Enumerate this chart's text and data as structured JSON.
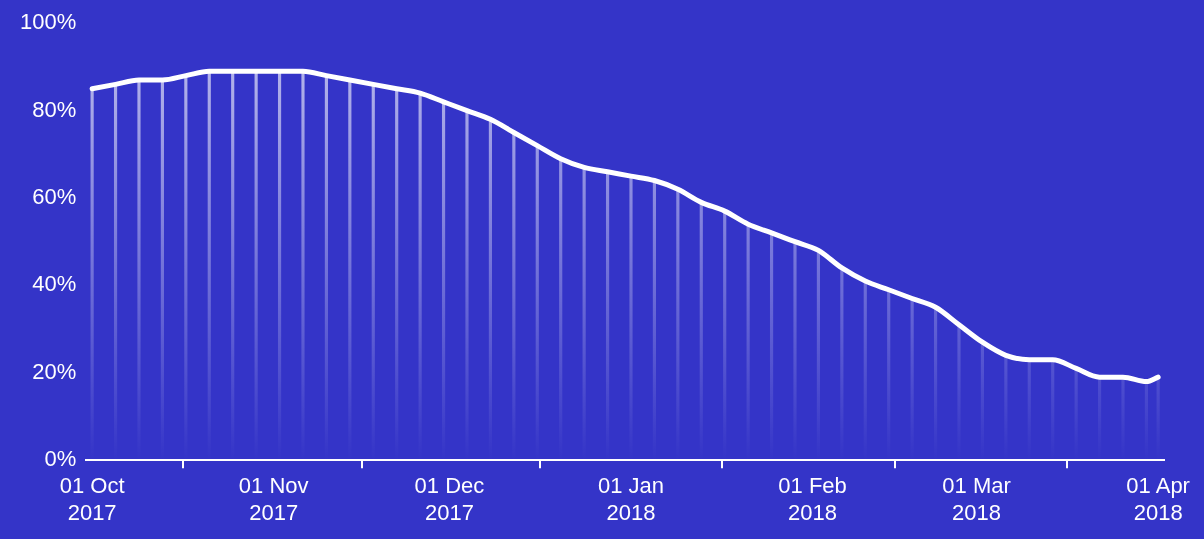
{
  "chart_data": {
    "type": "bar",
    "x": [
      "2017-10-01",
      "2017-10-05",
      "2017-10-09",
      "2017-10-13",
      "2017-10-17",
      "2017-10-21",
      "2017-10-25",
      "2017-10-29",
      "2017-11-02",
      "2017-11-06",
      "2017-11-10",
      "2017-11-14",
      "2017-11-18",
      "2017-11-22",
      "2017-11-26",
      "2017-11-30",
      "2017-12-04",
      "2017-12-08",
      "2017-12-12",
      "2017-12-16",
      "2017-12-20",
      "2017-12-24",
      "2017-12-28",
      "2018-01-01",
      "2018-01-05",
      "2018-01-09",
      "2018-01-13",
      "2018-01-17",
      "2018-01-21",
      "2018-01-25",
      "2018-01-29",
      "2018-02-02",
      "2018-02-06",
      "2018-02-10",
      "2018-02-14",
      "2018-02-18",
      "2018-02-22",
      "2018-02-26",
      "2018-03-02",
      "2018-03-06",
      "2018-03-10",
      "2018-03-14",
      "2018-03-18",
      "2018-03-22",
      "2018-03-26",
      "2018-03-30",
      "2018-04-01"
    ],
    "series": [
      {
        "color": "#ffffff",
        "values": [
          85,
          86,
          87,
          87,
          88,
          89,
          89,
          89,
          89,
          89,
          88,
          87,
          86,
          85,
          84,
          82,
          80,
          78,
          75,
          72,
          69,
          67,
          66,
          65,
          64,
          62,
          59,
          57,
          54,
          52,
          50,
          48,
          44,
          41,
          39,
          37,
          35,
          31,
          27,
          24,
          23,
          23,
          21,
          19,
          19,
          18,
          19
        ]
      },
      {
        "type": "line",
        "color": "#ffffff",
        "values": [
          85,
          86,
          87,
          87,
          88,
          89,
          89,
          89,
          89,
          89,
          88,
          87,
          86,
          85,
          84,
          82,
          80,
          78,
          75,
          72,
          69,
          67,
          66,
          65,
          64,
          62,
          59,
          57,
          54,
          52,
          50,
          48,
          44,
          41,
          39,
          37,
          35,
          31,
          27,
          24,
          23,
          23,
          21,
          19,
          19,
          18,
          19
        ]
      }
    ],
    "xlim": [
      "2017-09-30",
      "2018-04-02"
    ],
    "xticks": [
      {
        "value": "2017-10-01",
        "label": "01 Oct 2017"
      },
      {
        "value": "2017-11-01",
        "label": "01 Nov 2017"
      },
      {
        "value": "2017-12-01",
        "label": "01 Dec 2017"
      },
      {
        "value": "2018-01-01",
        "label": "01 Jan 2018"
      },
      {
        "value": "2018-02-01",
        "label": "01 Feb 2018"
      },
      {
        "value": "2018-03-01",
        "label": "01 Mar 2018"
      },
      {
        "value": "2018-04-01",
        "label": "01 Apr 2018"
      }
    ],
    "ylim": [
      0,
      100
    ],
    "yticks": [
      {
        "value": 0,
        "label": "0%"
      },
      {
        "value": 20,
        "label": "20%"
      },
      {
        "value": 40,
        "label": "40%"
      },
      {
        "value": 60,
        "label": "60%"
      },
      {
        "value": 80,
        "label": "80%"
      },
      {
        "value": 100,
        "label": "100%"
      }
    ],
    "grid": false,
    "legend": false,
    "line_style": "solid"
  }
}
